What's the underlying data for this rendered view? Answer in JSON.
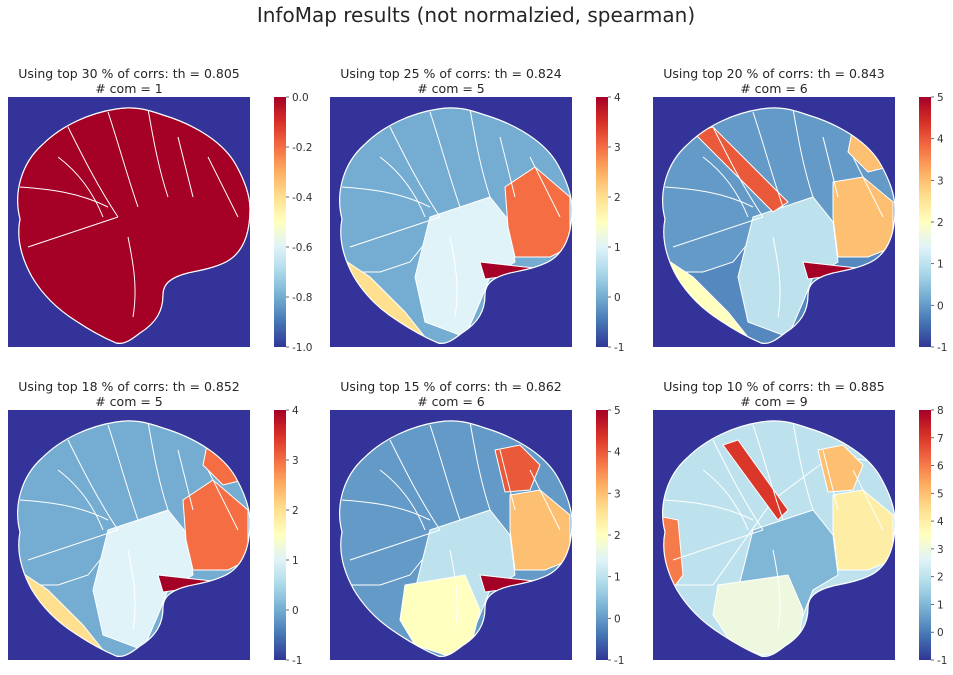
{
  "figure": {
    "suptitle": "InfoMap results (not normalzied, spearman)"
  },
  "chart_data": [
    {
      "type": "heatmap",
      "title_line1": "Using top 30 % of corrs: th = 0.805",
      "title_line2": "# com = 1",
      "percent": 30,
      "threshold": 0.805,
      "num_communities": 1,
      "colorbar": {
        "min": -1.0,
        "max": 0.0,
        "ticks": [
          "0.0",
          "-0.2",
          "-0.4",
          "-0.6",
          "-0.8",
          "-1.0"
        ],
        "tick_values": [
          0,
          -0.2,
          -0.4,
          -0.6,
          -0.8,
          -1.0
        ]
      },
      "regions": [
        {
          "community": 0
        }
      ]
    },
    {
      "type": "heatmap",
      "title_line1": "Using top 25 % of corrs: th = 0.824",
      "title_line2": "# com = 5",
      "percent": 25,
      "threshold": 0.824,
      "num_communities": 5,
      "colorbar": {
        "min": -1,
        "max": 4,
        "ticks": [
          "4",
          "3",
          "2",
          "1",
          "0",
          "-1"
        ],
        "tick_values": [
          4,
          3,
          2,
          1,
          0,
          -1
        ]
      },
      "regions": [
        {
          "community": 0
        },
        {
          "community": 1
        },
        {
          "community": 2
        },
        {
          "community": 3
        },
        {
          "community": 4
        }
      ]
    },
    {
      "type": "heatmap",
      "title_line1": "Using top 20 % of corrs: th = 0.843",
      "title_line2": "# com = 6",
      "percent": 20,
      "threshold": 0.843,
      "num_communities": 6,
      "colorbar": {
        "min": -1,
        "max": 5,
        "ticks": [
          "5",
          "4",
          "3",
          "2",
          "1",
          "0",
          "-1"
        ],
        "tick_values": [
          5,
          4,
          3,
          2,
          1,
          0,
          -1
        ]
      },
      "regions": [
        {
          "community": 0
        },
        {
          "community": 1
        },
        {
          "community": 2
        },
        {
          "community": 3
        },
        {
          "community": 4
        },
        {
          "community": 5
        }
      ]
    },
    {
      "type": "heatmap",
      "title_line1": "Using top 18 % of corrs: th = 0.852",
      "title_line2": "# com = 5",
      "percent": 18,
      "threshold": 0.852,
      "num_communities": 5,
      "colorbar": {
        "min": -1,
        "max": 4,
        "ticks": [
          "4",
          "3",
          "2",
          "1",
          "0",
          "-1"
        ],
        "tick_values": [
          4,
          3,
          2,
          1,
          0,
          -1
        ]
      },
      "regions": [
        {
          "community": 0
        },
        {
          "community": 1
        },
        {
          "community": 2
        },
        {
          "community": 3
        },
        {
          "community": 4
        }
      ]
    },
    {
      "type": "heatmap",
      "title_line1": "Using top 15 % of corrs: th = 0.862",
      "title_line2": "# com = 6",
      "percent": 15,
      "threshold": 0.862,
      "num_communities": 6,
      "colorbar": {
        "min": -1,
        "max": 5,
        "ticks": [
          "5",
          "4",
          "3",
          "2",
          "1",
          "0",
          "-1"
        ],
        "tick_values": [
          5,
          4,
          3,
          2,
          1,
          0,
          -1
        ]
      },
      "regions": [
        {
          "community": 0
        },
        {
          "community": 1
        },
        {
          "community": 2
        },
        {
          "community": 3
        },
        {
          "community": 4
        },
        {
          "community": 5
        }
      ]
    },
    {
      "type": "heatmap",
      "title_line1": "Using top 10 % of corrs: th = 0.885",
      "title_line2": "# com = 9",
      "percent": 10,
      "threshold": 0.885,
      "num_communities": 9,
      "colorbar": {
        "min": -1,
        "max": 8,
        "ticks": [
          "8",
          "7",
          "6",
          "5",
          "4",
          "3",
          "2",
          "1",
          "0",
          "-1"
        ],
        "tick_values": [
          8,
          7,
          6,
          5,
          4,
          3,
          2,
          1,
          0,
          -1
        ]
      },
      "regions": [
        {
          "community": 0
        },
        {
          "community": 1
        },
        {
          "community": 2
        },
        {
          "community": 3
        },
        {
          "community": 4
        },
        {
          "community": 5
        },
        {
          "community": 6
        },
        {
          "community": 7
        },
        {
          "community": 8
        }
      ]
    }
  ],
  "colors": {
    "colormap": "RdYlBu_r",
    "stops": [
      "#313695",
      "#4575b4",
      "#74add1",
      "#abd9e9",
      "#e0f3f8",
      "#ffffbf",
      "#fee090",
      "#fdae61",
      "#f46d43",
      "#d73027",
      "#a50026"
    ],
    "boundary": "#ffffff"
  }
}
